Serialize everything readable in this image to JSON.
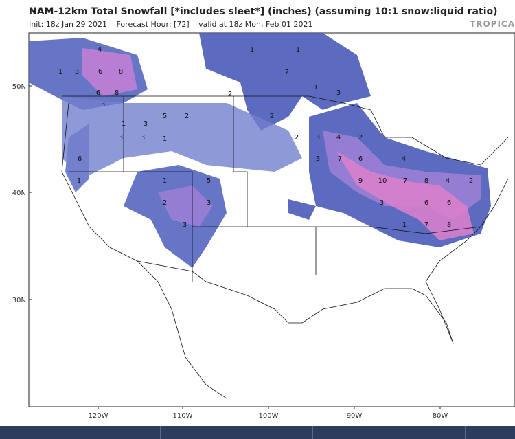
{
  "header": {
    "title": "NAM-12km Total Snowfall [*includes sleet*] (inches) (assuming 10:1 snow:liquid ratio)",
    "subtitle": [
      "Init: 18z Jan 29 2021",
      "Forecast Hour: [72]",
      "valid at 18z Mon, Feb 01 2021"
    ],
    "brand": "TROPICA"
  },
  "map": {
    "lat_labels": [
      "50N",
      "40N",
      "30N"
    ],
    "lon_labels": [
      "120W",
      "110W",
      "100W",
      "90W",
      "80W"
    ],
    "snow_labels": [
      4,
      3,
      6,
      8,
      1,
      6,
      8,
      3,
      5,
      2,
      3,
      1,
      3,
      3,
      1,
      2,
      1,
      1,
      2,
      3,
      1,
      2,
      3,
      4,
      2,
      3,
      7,
      6,
      4,
      9,
      10,
      7,
      8,
      4,
      2,
      3,
      6,
      6,
      1,
      7,
      8,
      5,
      3,
      2,
      1,
      3,
      6,
      1,
      2
    ]
  }
}
